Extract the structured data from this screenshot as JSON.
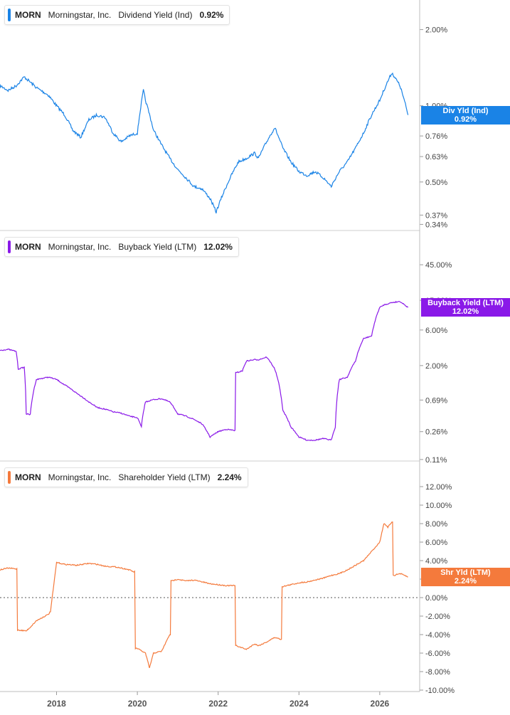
{
  "colors": {
    "dividend": "#1a83e6",
    "buyback": "#8a19e8",
    "shareholder": "#f47a3c",
    "grid": "#e6e6e6",
    "axis_text": "#444444"
  },
  "panels": [
    {
      "ticker": "MORN",
      "company": "Morningstar, Inc.",
      "metric": "Dividend Yield (Ind)",
      "value": "0.92%",
      "tag_line1": "Div Yld (Ind)",
      "tag_line2": "0.92%"
    },
    {
      "ticker": "MORN",
      "company": "Morningstar, Inc.",
      "metric": "Buyback Yield (LTM)",
      "value": "12.02%",
      "tag_line1": "Buyback Yield (LTM)",
      "tag_line2": "12.02%"
    },
    {
      "ticker": "MORN",
      "company": "Morningstar, Inc.",
      "metric": "Shareholder Yield (LTM)",
      "value": "2.24%",
      "tag_line1": "Shr Yld (LTM)",
      "tag_line2": "2.24%"
    }
  ],
  "chart_data": [
    {
      "type": "line",
      "series": [
        {
          "name": "Dividend Yield (Ind)",
          "x": [
            2016.6,
            2016.8,
            2017.0,
            2017.2,
            2017.5,
            2017.8,
            2018.0,
            2018.2,
            2018.4,
            2018.6,
            2018.8,
            2019.0,
            2019.2,
            2019.4,
            2019.6,
            2019.8,
            2020.0,
            2020.15,
            2020.2,
            2020.4,
            2020.6,
            2020.8,
            2021.0,
            2021.2,
            2021.4,
            2021.6,
            2021.8,
            2021.95,
            2022.1,
            2022.3,
            2022.5,
            2022.7,
            2022.9,
            2023.0,
            2023.2,
            2023.4,
            2023.6,
            2023.8,
            2024.0,
            2024.2,
            2024.4,
            2024.6,
            2024.8,
            2025.0,
            2025.2,
            2025.4,
            2025.6,
            2025.8,
            2026.0,
            2026.1,
            2026.3,
            2026.5,
            2026.7
          ],
          "y": [
            1.2,
            1.15,
            1.2,
            1.3,
            1.18,
            1.1,
            1.0,
            0.92,
            0.8,
            0.75,
            0.88,
            0.92,
            0.9,
            0.78,
            0.72,
            0.76,
            0.78,
            1.15,
            1.05,
            0.8,
            0.7,
            0.62,
            0.56,
            0.52,
            0.48,
            0.47,
            0.43,
            0.38,
            0.44,
            0.52,
            0.6,
            0.62,
            0.65,
            0.62,
            0.72,
            0.82,
            0.68,
            0.6,
            0.55,
            0.53,
            0.55,
            0.52,
            0.48,
            0.55,
            0.6,
            0.68,
            0.78,
            0.92,
            1.05,
            1.15,
            1.35,
            1.2,
            0.92
          ]
        }
      ],
      "y_ticks": [
        2.0,
        1.0,
        0.76,
        0.63,
        0.5,
        0.37,
        0.34
      ],
      "y_tick_labels": [
        "2.00%",
        "1.00%",
        "0.76%",
        "0.63%",
        "0.50%",
        "0.37%",
        "0.34%"
      ],
      "scale": "log",
      "ylim": [
        0.33,
        2.3
      ],
      "last_value": 0.92
    },
    {
      "type": "line",
      "series": [
        {
          "name": "Buyback Yield (LTM)",
          "x": [
            2016.6,
            2016.8,
            2017.0,
            2017.05,
            2017.2,
            2017.25,
            2017.35,
            2017.5,
            2017.8,
            2018.0,
            2018.2,
            2018.5,
            2018.8,
            2019.0,
            2019.2,
            2019.4,
            2019.6,
            2019.8,
            2020.0,
            2020.1,
            2020.2,
            2020.4,
            2020.6,
            2020.8,
            2021.0,
            2021.2,
            2021.4,
            2021.6,
            2021.8,
            2022.0,
            2022.2,
            2022.4,
            2022.45,
            2022.6,
            2022.7,
            2022.9,
            2023.0,
            2023.2,
            2023.4,
            2023.6,
            2023.8,
            2024.0,
            2024.2,
            2024.4,
            2024.6,
            2024.8,
            2024.9,
            2025.0,
            2025.2,
            2025.4,
            2025.6,
            2025.8,
            2026.0,
            2026.1,
            2026.3,
            2026.5,
            2026.7
          ],
          "y": [
            3.2,
            3.3,
            3.1,
            1.8,
            1.9,
            0.45,
            0.44,
            1.3,
            1.4,
            1.3,
            1.1,
            0.85,
            0.65,
            0.55,
            0.52,
            0.48,
            0.46,
            0.42,
            0.4,
            0.3,
            0.65,
            0.7,
            0.72,
            0.65,
            0.45,
            0.42,
            0.38,
            0.33,
            0.22,
            0.26,
            0.28,
            0.27,
            1.6,
            1.7,
            2.3,
            2.4,
            2.4,
            2.6,
            1.8,
            0.5,
            0.3,
            0.22,
            0.2,
            0.2,
            0.21,
            0.2,
            0.3,
            1.3,
            1.4,
            2.3,
            4.6,
            5.0,
            12.0,
            13.0,
            14.0,
            14.5,
            12.02
          ]
        }
      ],
      "y_ticks": [
        45.0,
        15.0,
        6.0,
        2.0,
        0.69,
        0.26,
        0.11
      ],
      "y_tick_labels": [
        "45.00%",
        "15.00%",
        "6.00%",
        "2.00%",
        "0.69%",
        "0.26%",
        "0.11%"
      ],
      "scale": "log",
      "ylim": [
        0.105,
        55
      ],
      "last_value": 12.02
    },
    {
      "type": "line",
      "series": [
        {
          "name": "Shareholder Yield (LTM)",
          "x": [
            2016.6,
            2016.8,
            2017.0,
            2017.05,
            2017.25,
            2017.35,
            2017.5,
            2017.8,
            2017.85,
            2018.0,
            2018.2,
            2018.5,
            2018.8,
            2019.0,
            2019.2,
            2019.5,
            2019.8,
            2019.9,
            2020.0,
            2020.2,
            2020.3,
            2020.4,
            2020.6,
            2020.8,
            2020.85,
            2021.0,
            2021.2,
            2021.4,
            2021.6,
            2021.8,
            2022.0,
            2022.2,
            2022.4,
            2022.45,
            2022.7,
            2022.9,
            2023.0,
            2023.2,
            2023.4,
            2023.55,
            2023.6,
            2023.8,
            2024.0,
            2024.2,
            2024.4,
            2024.6,
            2024.8,
            2025.0,
            2025.2,
            2025.4,
            2025.6,
            2025.8,
            2026.0,
            2026.1,
            2026.2,
            2026.3,
            2026.35,
            2026.5,
            2026.7
          ],
          "y": [
            3.0,
            3.2,
            3.1,
            -3.5,
            -3.6,
            -3.2,
            -2.5,
            -1.8,
            -1.5,
            3.8,
            3.6,
            3.5,
            3.7,
            3.6,
            3.4,
            3.3,
            3.0,
            2.8,
            -5.5,
            -6.0,
            -7.6,
            -6.0,
            -5.8,
            -4.0,
            1.8,
            2.0,
            1.8,
            1.9,
            1.7,
            1.5,
            1.4,
            1.3,
            1.3,
            -5.2,
            -5.6,
            -5.0,
            -5.2,
            -4.8,
            -4.3,
            -4.5,
            1.2,
            1.4,
            1.6,
            1.7,
            1.9,
            2.1,
            2.4,
            2.6,
            3.0,
            3.5,
            4.0,
            5.0,
            6.0,
            8.0,
            7.6,
            8.2,
            2.4,
            2.6,
            2.24
          ]
        }
      ],
      "y_ticks": [
        12,
        10,
        8,
        6,
        4,
        2,
        0,
        -2,
        -4,
        -6,
        -8,
        -10
      ],
      "y_tick_labels": [
        "12.00%",
        "10.00%",
        "8.00%",
        "6.00%",
        "4.00%",
        "2.00%",
        "0.00%",
        "-2.00%",
        "-4.00%",
        "-6.00%",
        "-8.00%",
        "-10.00%"
      ],
      "scale": "linear",
      "ylim": [
        -10,
        12
      ],
      "last_value": 2.24,
      "zero_line": "dotted"
    }
  ],
  "x_axis": {
    "ticks": [
      2018,
      2020,
      2022,
      2024,
      2026
    ],
    "labels": [
      "2018",
      "2020",
      "2022",
      "2024",
      "2026"
    ],
    "xlim": [
      2016.6,
      2026.9
    ]
  }
}
